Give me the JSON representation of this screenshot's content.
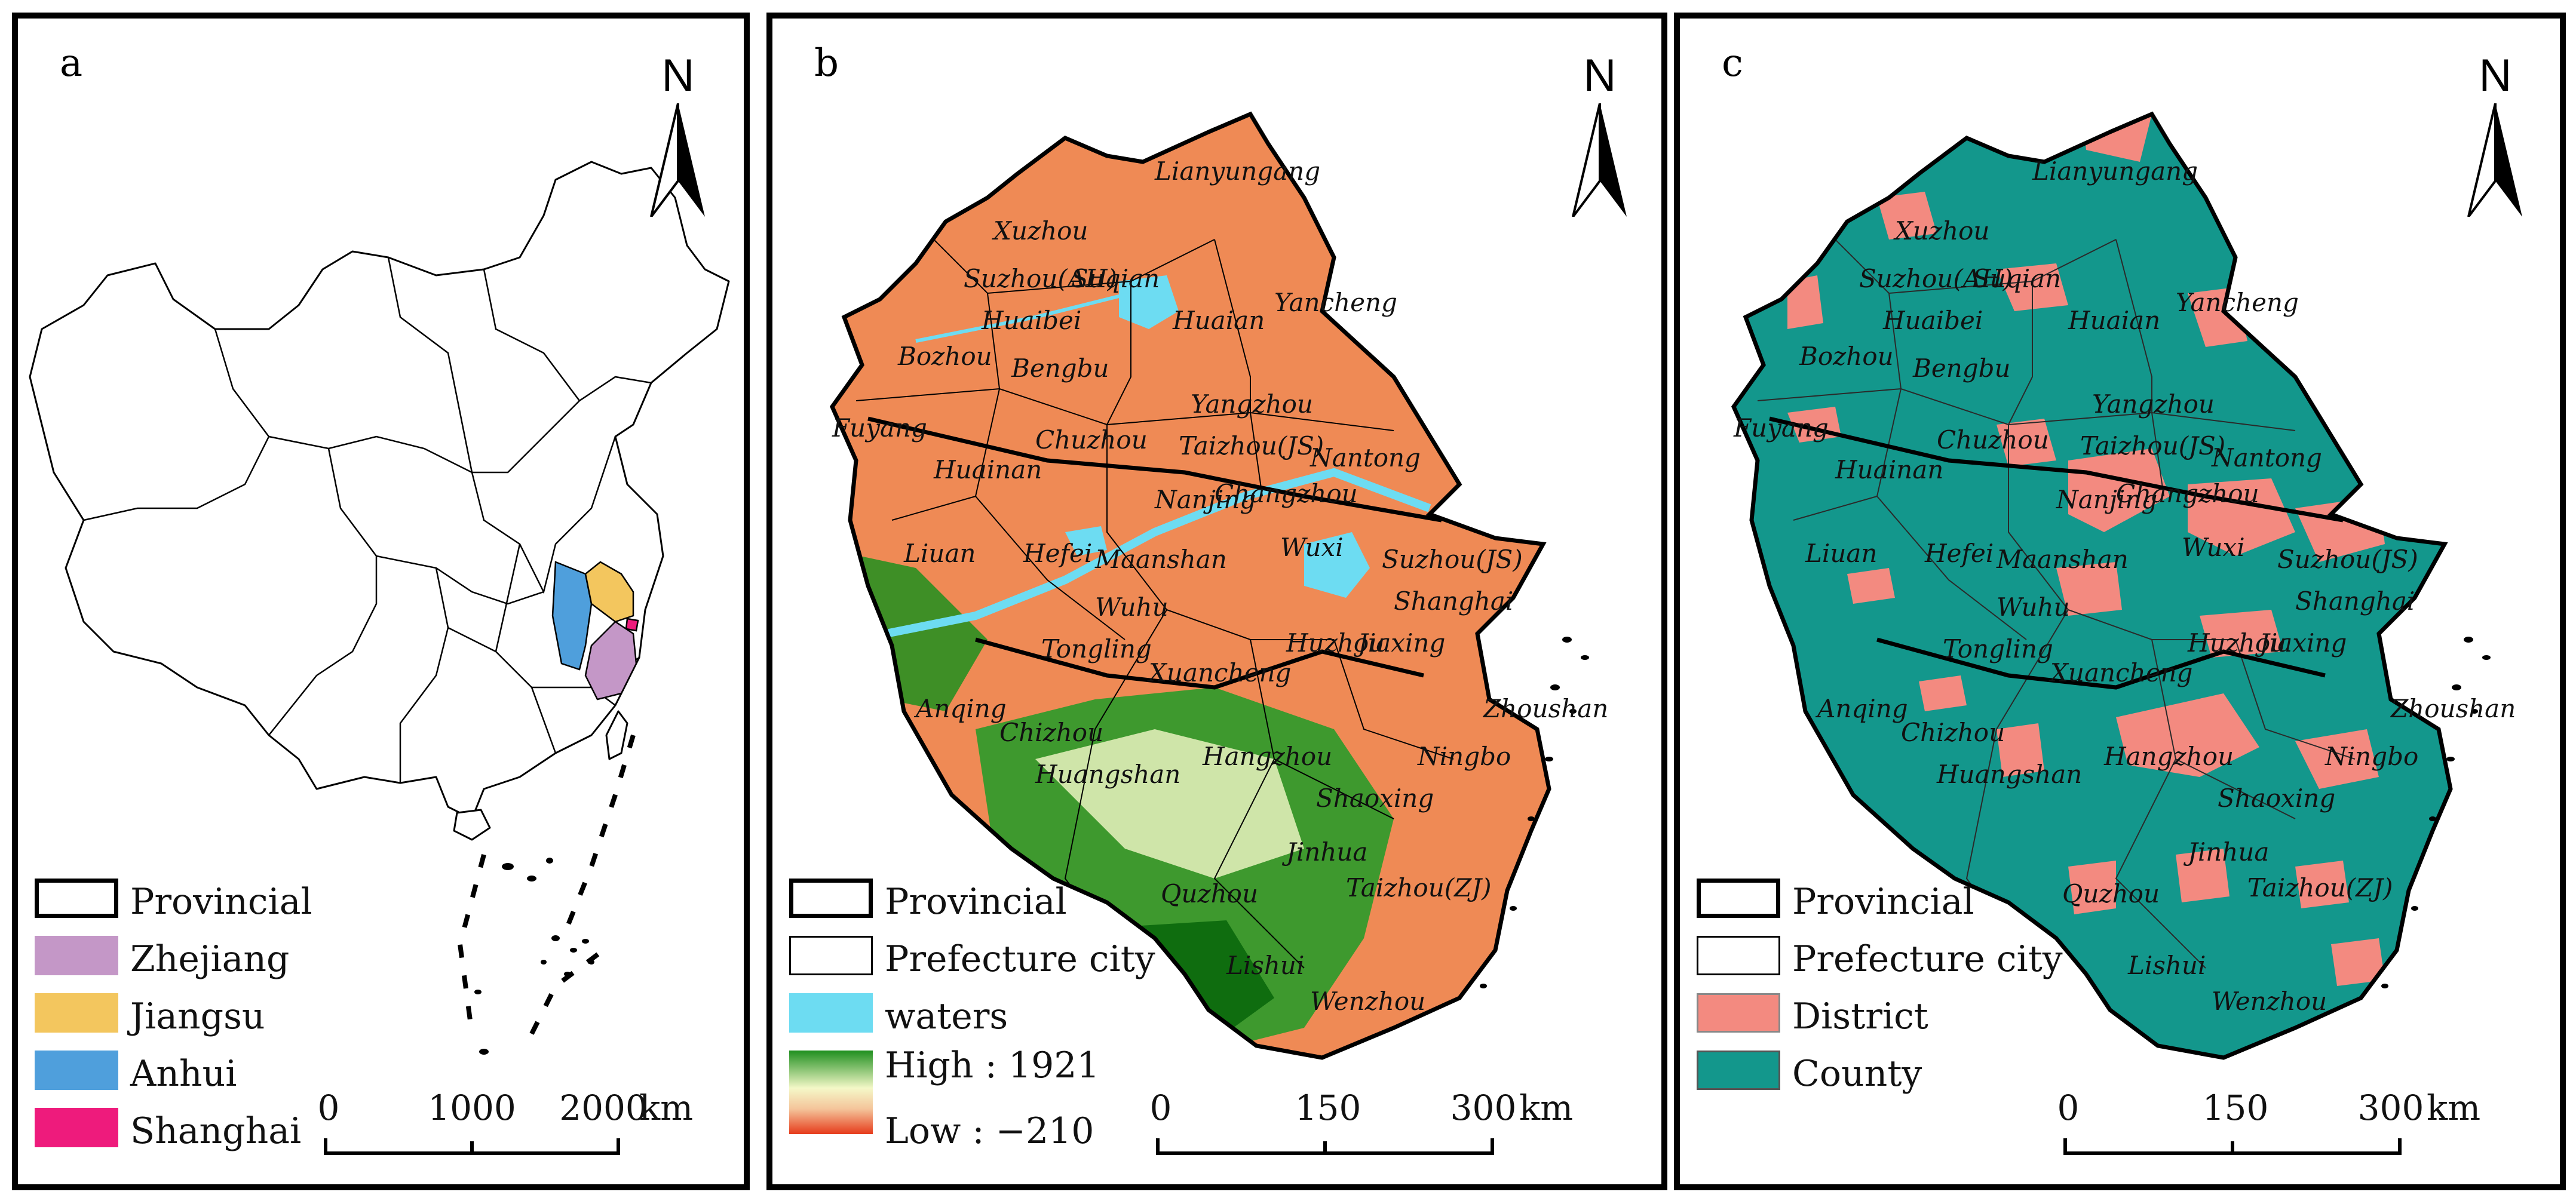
{
  "figure": {
    "panels": [
      {
        "letter": "a",
        "north_label": "N",
        "legend": [
          {
            "label": "Provincial",
            "color": "#ffffff",
            "bold_border": true
          },
          {
            "label": "Zhejiang",
            "color": "#c497c7"
          },
          {
            "label": "Jiangsu",
            "color": "#f3c65e"
          },
          {
            "label": "Anhui",
            "color": "#4f9fdc"
          },
          {
            "label": "Shanghai",
            "color": "#ee1b7c"
          }
        ],
        "scale": {
          "ticks": [
            "0",
            "1000",
            "2000"
          ],
          "unit": "km"
        }
      },
      {
        "letter": "b",
        "north_label": "N",
        "legend": [
          {
            "label": "Provincial",
            "color": "#ffffff",
            "bold_border": true
          },
          {
            "label": "Prefecture city",
            "color": "#ffffff"
          },
          {
            "label": "waters",
            "color": "#6ddcf2"
          }
        ],
        "elevation": {
          "high_label": "High : 1921",
          "low_label": "Low : −210",
          "high": 1921,
          "low": -210
        },
        "scale": {
          "ticks": [
            "0",
            "150",
            "300"
          ],
          "unit": "km"
        }
      },
      {
        "letter": "c",
        "north_label": "N",
        "legend": [
          {
            "label": "Provincial",
            "color": "#ffffff",
            "bold_border": true
          },
          {
            "label": "Prefecture city",
            "color": "#ffffff"
          },
          {
            "label": "District",
            "color": "#f38a80"
          },
          {
            "label": "County",
            "color": "#13978c"
          }
        ],
        "scale": {
          "ticks": [
            "0",
            "150",
            "300"
          ],
          "unit": "km"
        }
      }
    ],
    "cities": [
      "Lianyungang",
      "Xuzhou",
      "Suzhou(AH)",
      "Suqian",
      "Huaibei",
      "Huaian",
      "Yancheng",
      "Bozhou",
      "Bengbu",
      "Fuyang",
      "Yangzhou",
      "Chuzhou",
      "Huainan",
      "Taizhou(JS)",
      "Nantong",
      "Nanjing",
      "Changzhou",
      "Liuan",
      "Hefei",
      "Maanshan",
      "Wuxi",
      "Suzhou(JS)",
      "Shanghai",
      "Wuhu",
      "Tongling",
      "Huzhou",
      "Jiaxing",
      "Xuancheng",
      "Anqing",
      "Zhoushan",
      "Chizhou",
      "Hangzhou",
      "Ningbo",
      "Huangshan",
      "Shaoxing",
      "Jinhua",
      "Taizhou(ZJ)",
      "Quzhou",
      "Lishui",
      "Wenzhou"
    ],
    "colors": {
      "land_b": "#ef8a55",
      "highland_b": "#1f8f1f",
      "waters": "#6ddcf2",
      "district": "#f38a80",
      "county": "#13978c"
    }
  }
}
